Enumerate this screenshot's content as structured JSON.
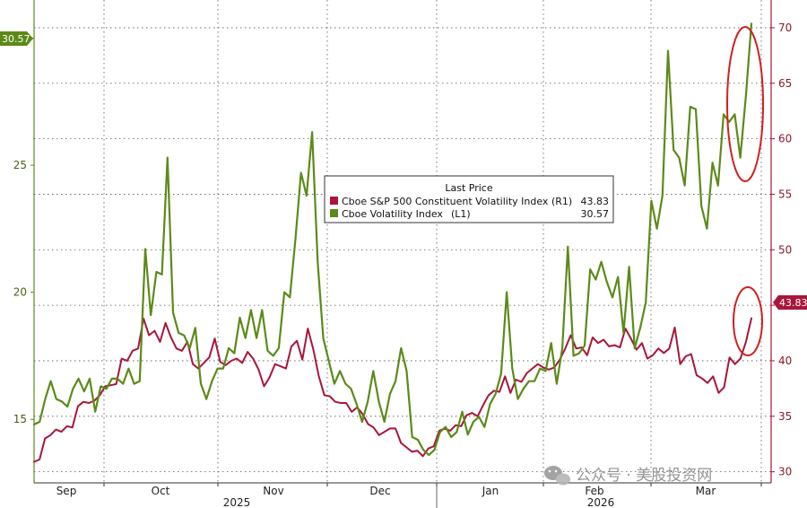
{
  "chart_data": {
    "type": "line",
    "legend": {
      "title": "Last Price",
      "placement": "center",
      "entries": [
        {
          "name": "Cboe S&P 500 Constituent Volatility Index",
          "axis": "(R1)",
          "last": "43.83"
        },
        {
          "name": "Cboe Volatility Index",
          "axis": "(L1)",
          "last": "30.57"
        }
      ]
    },
    "x_ticks": [
      "Sep",
      "Oct",
      "Nov",
      "Dec",
      "Jan",
      "Feb",
      "Mar"
    ],
    "x_year_labels": [
      "2025",
      "2026"
    ],
    "y_left": {
      "min": 12.5,
      "max": 31.5,
      "ticks": [
        15,
        20,
        25,
        30
      ],
      "tick_labels": [
        "15",
        "20",
        "25",
        "30"
      ],
      "last_label": "30.57"
    },
    "y_right": {
      "min": 29,
      "max": 72.5,
      "ticks": [
        30,
        35,
        40,
        45,
        50,
        55,
        60,
        65,
        70
      ],
      "tick_labels": [
        "30",
        "35",
        "40",
        "45",
        "50",
        "55",
        "60",
        "65",
        "70"
      ],
      "last_label": "43.83"
    },
    "grid": true,
    "series": [
      {
        "name": "Cboe Volatility Index",
        "axis": "left",
        "color": "#5c8a18",
        "values": [
          14.8,
          14.9,
          15.8,
          16.5,
          15.8,
          15.7,
          15.5,
          16.2,
          16.6,
          16.1,
          16.6,
          15.3,
          16.3,
          16.2,
          16.6,
          16.6,
          16.4,
          17.0,
          16.4,
          16.5,
          21.7,
          19.1,
          20.8,
          20.7,
          25.3,
          19.2,
          18.4,
          18.3,
          17.8,
          18.6,
          16.4,
          15.8,
          16.5,
          17.0,
          17.0,
          17.8,
          17.6,
          19.0,
          18.2,
          19.3,
          18.2,
          19.3,
          17.7,
          17.5,
          17.8,
          20.0,
          19.8,
          22.1,
          24.7,
          23.8,
          26.3,
          21.2,
          18.2,
          17.3,
          16.4,
          16.9,
          16.4,
          16.2,
          15.6,
          14.9,
          15.7,
          16.9,
          15.7,
          14.9,
          16.0,
          16.5,
          17.8,
          16.9,
          14.3,
          14.2,
          13.8,
          13.6,
          13.8,
          14.5,
          14.7,
          14.3,
          14.5,
          15.3,
          14.4,
          14.9,
          15.1,
          14.7,
          15.6,
          16.0,
          16.8,
          20.0,
          17.0,
          15.8,
          16.2,
          16.5,
          16.5,
          17.0,
          16.9,
          18.0,
          16.4,
          17.8,
          21.8,
          17.5,
          17.6,
          17.9,
          20.9,
          20.5,
          21.2,
          20.4,
          19.8,
          20.6,
          18.4,
          21.0,
          17.8,
          18.6,
          19.6,
          23.6,
          22.5,
          23.8,
          29.5,
          25.6,
          25.3,
          24.2,
          27.3,
          27.2,
          23.4,
          22.5,
          25.1,
          24.2,
          27.0,
          26.7,
          27.0,
          25.3,
          27.7,
          30.57
        ]
      },
      {
        "name": "Cboe S&P 500 Constituent Volatility Index",
        "axis": "right",
        "color": "#a8163a",
        "values": [
          30.9,
          31.1,
          33.0,
          33.3,
          33.8,
          33.6,
          34.1,
          34.0,
          35.9,
          36.3,
          36.2,
          36.4,
          36.9,
          37.7,
          37.8,
          37.9,
          40.2,
          40.0,
          40.9,
          41.1,
          43.8,
          42.3,
          42.7,
          41.7,
          43.4,
          42.1,
          41.1,
          40.9,
          41.7,
          39.7,
          39.3,
          39.8,
          40.3,
          42.0,
          39.9,
          39.6,
          40.0,
          40.2,
          39.8,
          40.8,
          40.2,
          39.2,
          37.7,
          38.5,
          39.7,
          39.5,
          39.3,
          41.3,
          41.8,
          40.1,
          42.9,
          41.0,
          38.6,
          36.9,
          36.8,
          36.3,
          36.2,
          36.2,
          35.4,
          35.8,
          35.2,
          34.3,
          34.0,
          33.3,
          33.6,
          33.9,
          33.9,
          32.6,
          32.2,
          31.8,
          31.9,
          31.4,
          32.1,
          32.3,
          33.7,
          33.9,
          33.7,
          34.2,
          34.1,
          35.1,
          35.3,
          35.0,
          36.0,
          36.9,
          37.3,
          37.2,
          38.6,
          37.1,
          38.3,
          38.1,
          38.9,
          39.3,
          39.7,
          39.4,
          39.2,
          39.4,
          40.1,
          41.1,
          42.3,
          41.1,
          41.2,
          40.5,
          42.1,
          41.6,
          41.9,
          41.3,
          41.4,
          41.2,
          42.9,
          42.0,
          41.0,
          41.6,
          40.2,
          40.5,
          41.1,
          40.7,
          41.1,
          43.0,
          39.7,
          40.4,
          40.6,
          38.7,
          38.4,
          38.0,
          38.6,
          37.1,
          37.6,
          40.3,
          39.7,
          40.2,
          41.7,
          43.83
        ]
      }
    ]
  },
  "watermark": "公众号 · 美股投资网",
  "colors": {
    "green": "#5c8a18",
    "red": "#a8163a",
    "highlight": "#d02020"
  }
}
